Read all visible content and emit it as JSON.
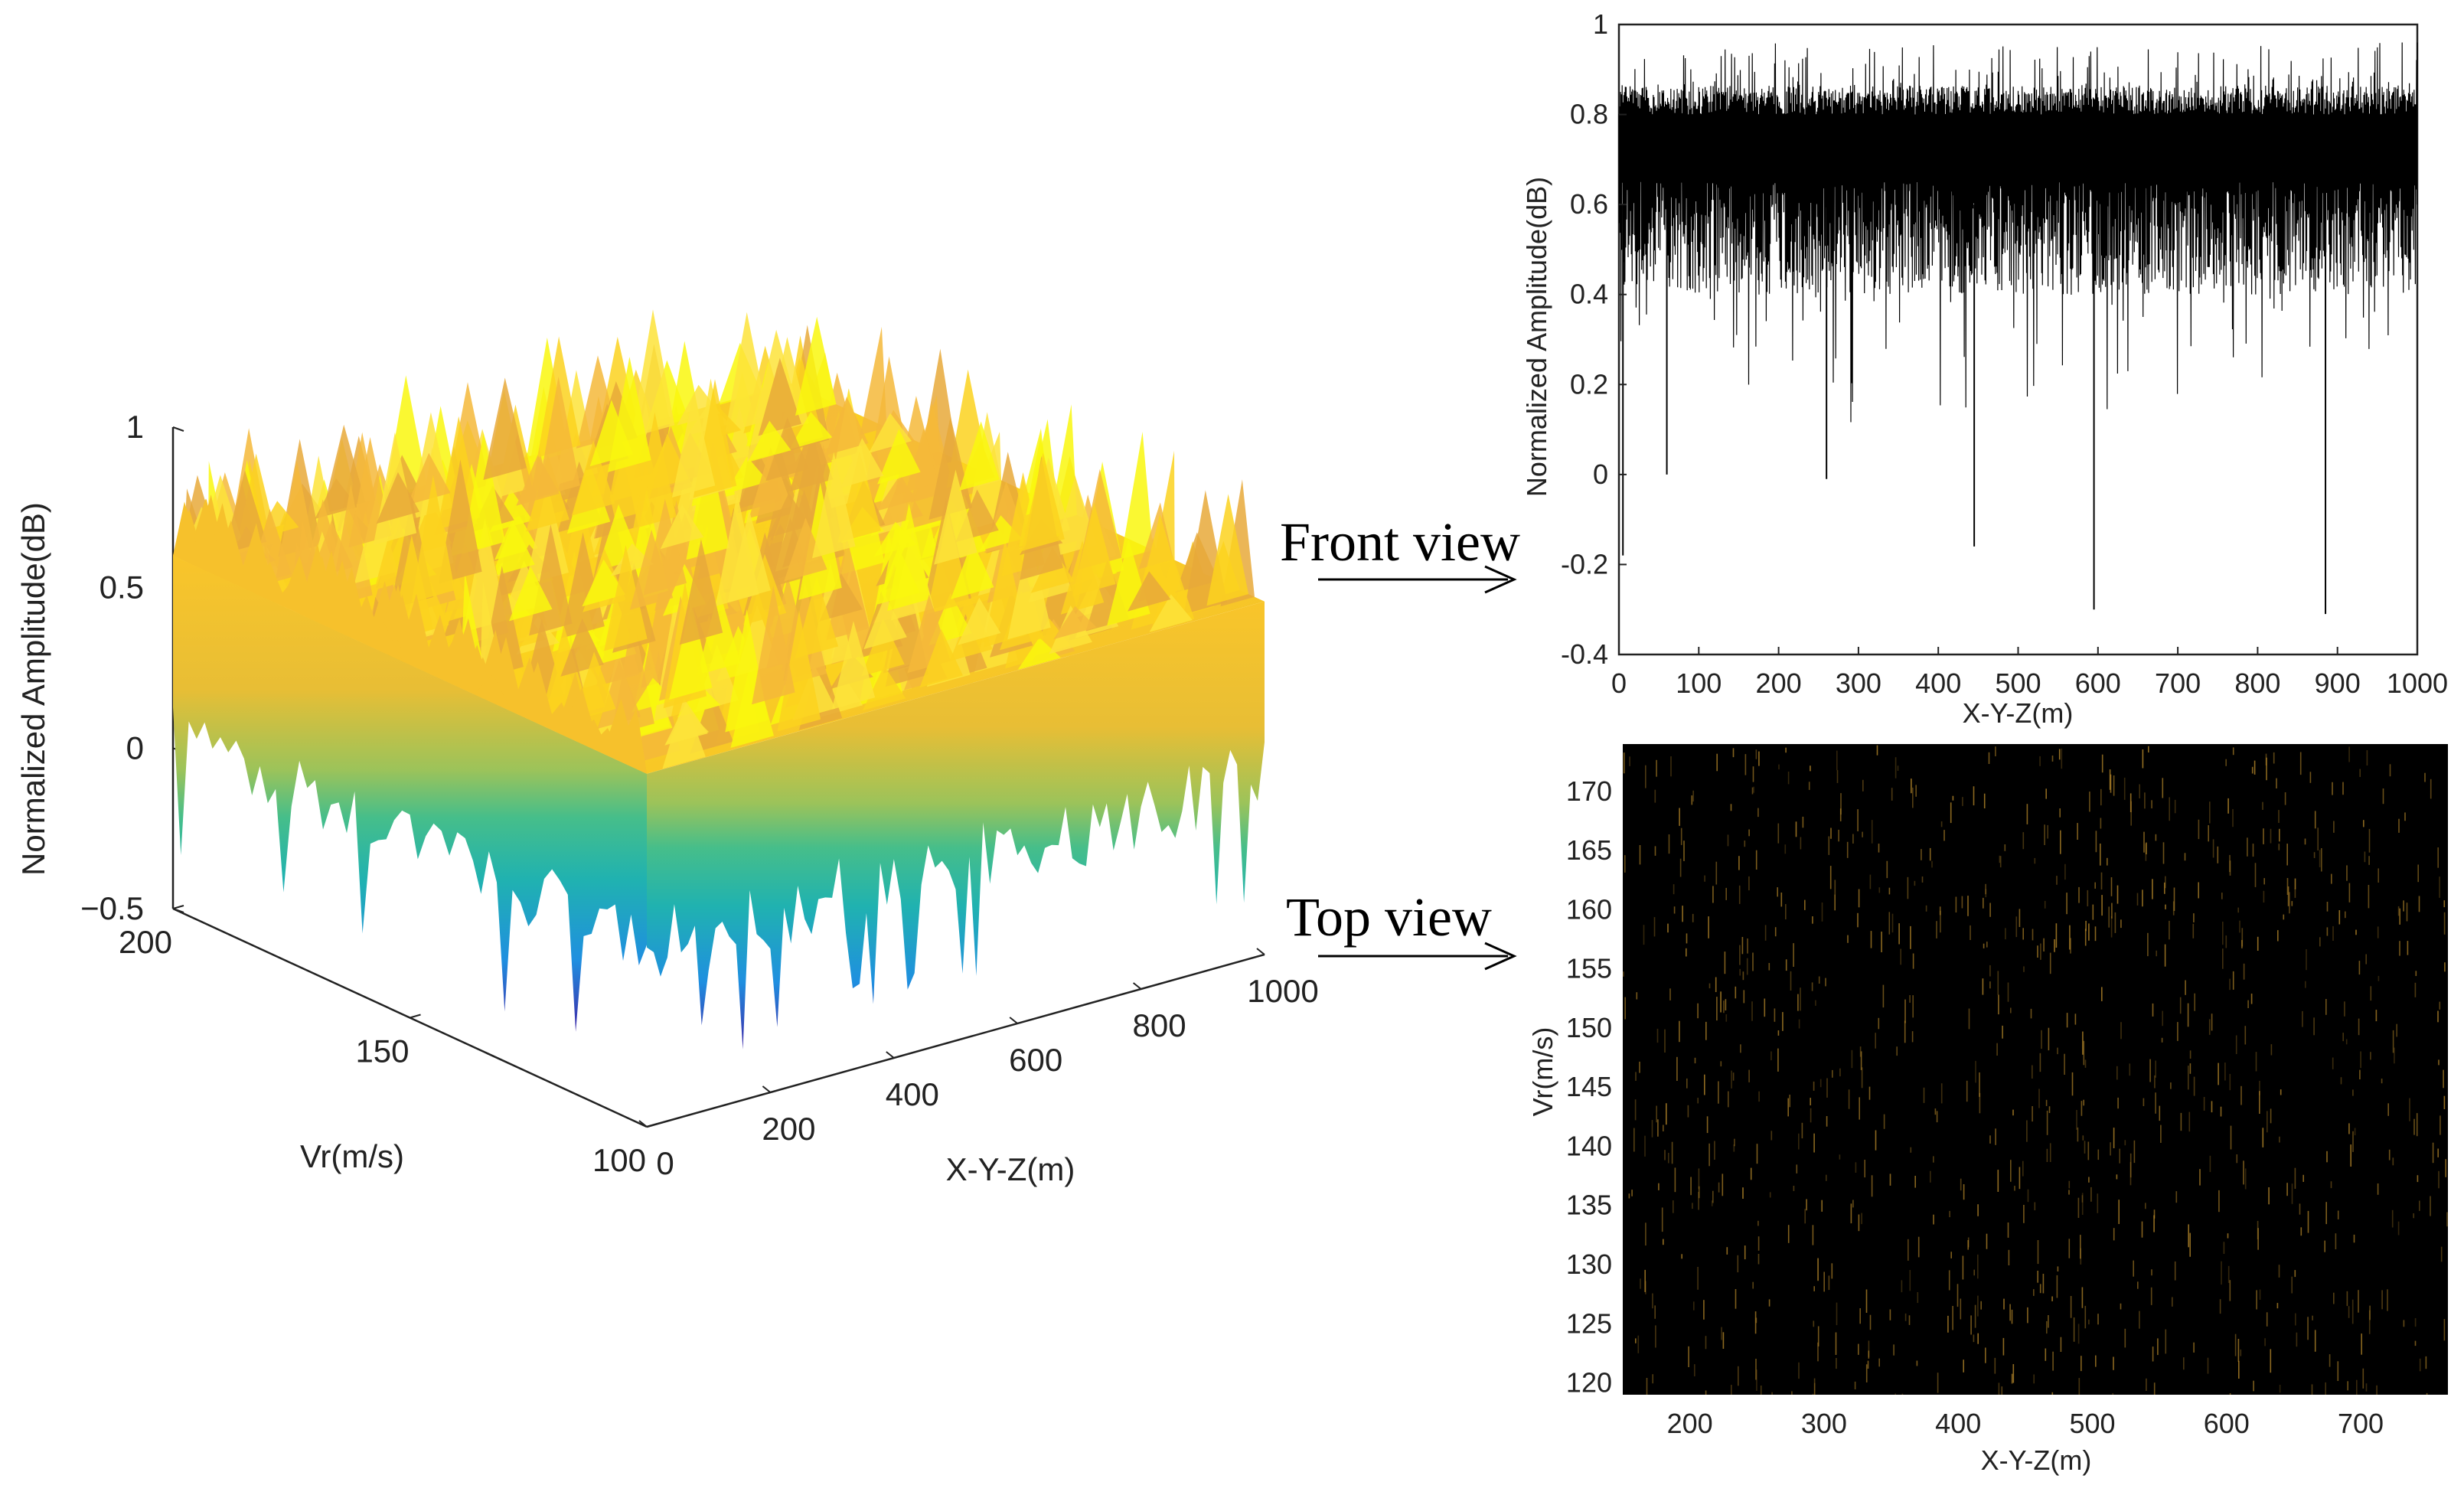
{
  "chart_data": [
    {
      "id": "surface-3d",
      "type": "surface",
      "zlabel": "Normalized Amplitude(dB)",
      "xlabel": "X-Y-Z(m)",
      "ylabel": "Vr(m/s)",
      "xlim": [
        0,
        1000
      ],
      "ylim": [
        100,
        200
      ],
      "zlim": [
        -0.5,
        1
      ],
      "xticks": [
        "0",
        "200",
        "400",
        "600",
        "800",
        "1000"
      ],
      "yticks": [
        "100",
        "150",
        "200"
      ],
      "zticks": [
        "−0.5",
        "0",
        "0.5",
        "1"
      ],
      "surface_level": 0.6,
      "surface_range": [
        -0.35,
        0.98
      ],
      "colormap": [
        "#3d26a8",
        "#1f8fe0",
        "#20b2b0",
        "#64c37a",
        "#e8be35",
        "#f9c52a",
        "#f9f70e"
      ]
    },
    {
      "id": "front-view",
      "type": "line",
      "ylabel": "Normalized Amplitude(dB)",
      "xlabel": "X-Y-Z(m)",
      "xlim": [
        0,
        1000
      ],
      "ylim": [
        -0.4,
        1
      ],
      "xticks": [
        "0",
        "100",
        "200",
        "300",
        "400",
        "500",
        "600",
        "700",
        "800",
        "900",
        "1000"
      ],
      "yticks": [
        "-0.4",
        "-0.2",
        "0",
        "0.2",
        "0.4",
        "0.6",
        "0.8",
        "1"
      ],
      "line_color": "#000000",
      "band": [
        0.45,
        0.82
      ],
      "notable_dips": [
        {
          "x": 5,
          "y": -0.18
        },
        {
          "x": 60,
          "y": 0.0
        },
        {
          "x": 260,
          "y": -0.01
        },
        {
          "x": 445,
          "y": -0.16
        },
        {
          "x": 595,
          "y": -0.3
        },
        {
          "x": 885,
          "y": -0.31
        }
      ]
    },
    {
      "id": "top-view",
      "type": "heatmap",
      "ylabel": "Vr(m/s)",
      "xlabel": "X-Y-Z(m)",
      "xlim": [
        150,
        765
      ],
      "ylim": [
        119,
        174
      ],
      "xticks": [
        "200",
        "300",
        "400",
        "500",
        "600",
        "700"
      ],
      "yticks": [
        "120",
        "125",
        "130",
        "135",
        "140",
        "145",
        "150",
        "155",
        "160",
        "165",
        "170"
      ],
      "background": "#000000",
      "speck_color": "#b8892a"
    }
  ],
  "annotations": {
    "front_view_label": "Front view",
    "top_view_label": "Top view"
  }
}
